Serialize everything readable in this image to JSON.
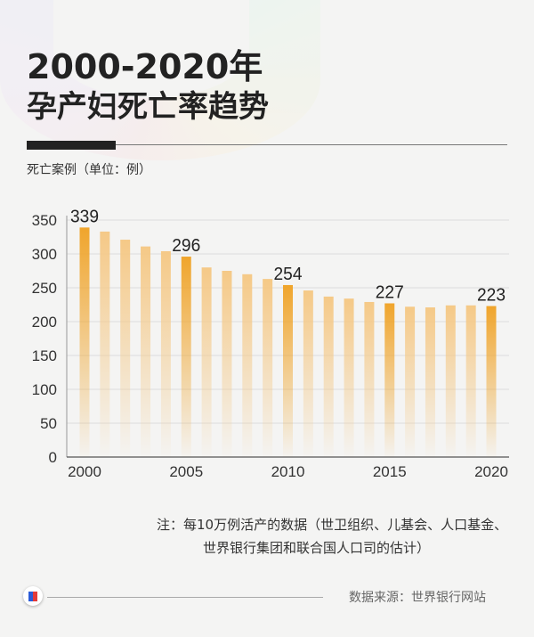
{
  "header": {
    "title_line1": "2000-2020年",
    "title_line2": "孕产妇死亡率趋势",
    "y_unit_label": "死亡案例（单位：例）"
  },
  "chart_data": {
    "type": "bar",
    "title": "2000-2020年孕产妇死亡率趋势",
    "ylabel": "死亡案例（单位：例）",
    "xlabel": "",
    "ylim": [
      0,
      350
    ],
    "yticks": [
      0,
      50,
      100,
      150,
      200,
      250,
      300,
      350
    ],
    "xticks": [
      2000,
      2005,
      2010,
      2015,
      2020
    ],
    "grid": true,
    "categories": [
      2000,
      2001,
      2002,
      2003,
      2004,
      2005,
      2006,
      2007,
      2008,
      2009,
      2010,
      2011,
      2012,
      2013,
      2014,
      2015,
      2016,
      2017,
      2018,
      2019,
      2020
    ],
    "values": [
      339,
      333,
      321,
      311,
      304,
      296,
      280,
      275,
      270,
      263,
      254,
      246,
      237,
      234,
      229,
      227,
      222,
      221,
      224,
      224,
      223
    ],
    "data_labels": {
      "2000": "339",
      "2005": "296",
      "2010": "254",
      "2015": "227",
      "2020": "223"
    },
    "colors": {
      "highlight": "#f0a52c",
      "normal": "#f5c987"
    }
  },
  "footer": {
    "note_line1": "注：每10万例活产的数据（世卫组织、儿基会、人口基金、",
    "note_line2": "世界银行集团和联合国人口司的估计）",
    "source": "数据来源：世界银行网站"
  }
}
